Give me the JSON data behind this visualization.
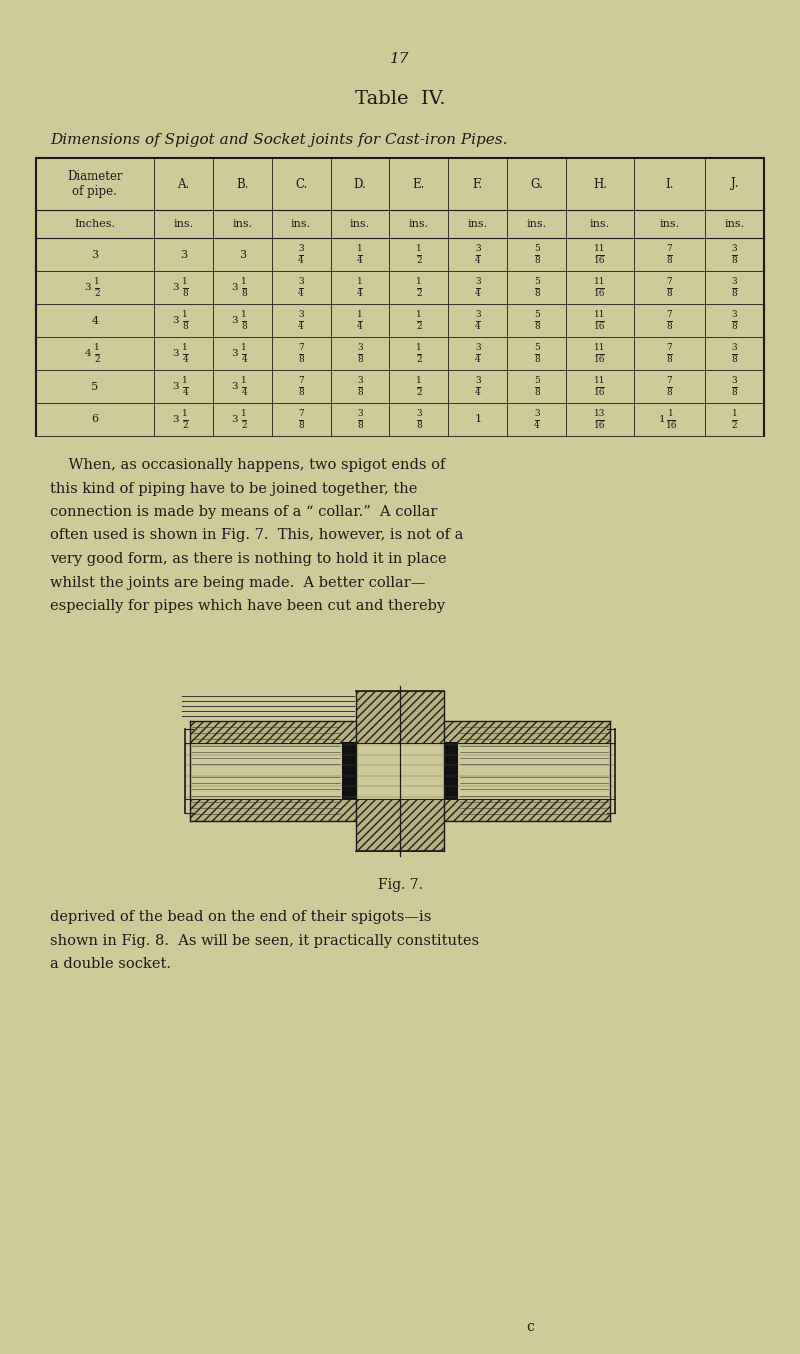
{
  "page_number": "17",
  "title": "Table  IV.",
  "subtitle": "Dimensions of Spigot and Socket joints for Cast-iron Pipes.",
  "background_color": "#ceca9a",
  "text_color": "#1a1a1a",
  "table_headers": [
    "Diameter\nof pipe.",
    "A.",
    "B.",
    "C.",
    "D.",
    "E.",
    "F.",
    "G.",
    "H.",
    "I.",
    "J."
  ],
  "unit_row": [
    "Inches.",
    "ins.",
    "ins.",
    "ins.",
    "ins.",
    "ins.",
    "ins.",
    "ins.",
    "ins.",
    "ins.",
    "ins."
  ],
  "table_rows": [
    [
      "3",
      "3",
      "3",
      "3/4",
      "1/4",
      "1/2",
      "3/4",
      "5/8",
      "11/16",
      "7/8",
      "3/8"
    ],
    [
      "3 1/2",
      "3 1/8",
      "3 1/8",
      "3/4",
      "1/4",
      "1/2",
      "3/4",
      "5/8",
      "11/16",
      "7/8",
      "3/8"
    ],
    [
      "4",
      "3 1/8",
      "3 1/8",
      "3/4",
      "1/4",
      "1/2",
      "3/4",
      "5/8",
      "11/16",
      "7/8",
      "3/8"
    ],
    [
      "4 1/2",
      "3 1/4",
      "3 1/4",
      "7/8",
      "3/8",
      "1/2",
      "3/4",
      "5/8",
      "11/16",
      "7/8",
      "3/8"
    ],
    [
      "5",
      "3 1/4",
      "3 1/4",
      "7/8",
      "3/8",
      "1/2",
      "3/4",
      "5/8",
      "11/16",
      "7/8",
      "3/8"
    ],
    [
      "6",
      "3 1/2",
      "3 1/2",
      "7/8",
      "3/8",
      "3/8",
      "1",
      "3/4",
      "13/16",
      "1 1/16",
      "1/2"
    ]
  ],
  "paragraph1_lines": [
    "    When, as occasionally happens, two spigot ends of",
    "this kind of piping have to be joined together, the",
    "connection is made by means of a “ collar.”  A collar",
    "often used is shown in Fig. 7.  This, however, is not of a",
    "very good form, as there is nothing to hold it in place",
    "whilst the joints are being made.  A better collar—",
    "especially for pipes which have been cut and thereby"
  ],
  "fig_caption": "Fig. 7.",
  "paragraph2_lines": [
    "deprived of the bead on the end of their spigots—is",
    "shown in Fig. 8.  As will be seen, it practically constitutes",
    "a double socket."
  ],
  "footer_char": "c"
}
